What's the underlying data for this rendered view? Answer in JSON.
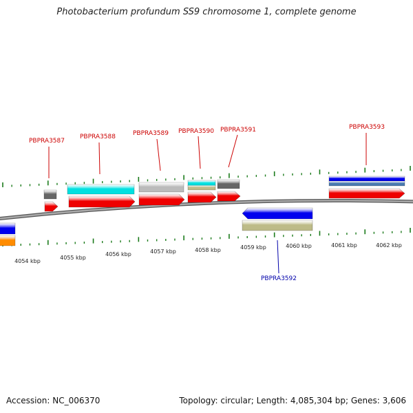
{
  "title": "Photobacterium profundum SS9 chromosome 1, complete genome",
  "footer": {
    "accession": "Accession: NC_006370",
    "summary": "Topology: circular; Length: 4,085,304 bp; Genes: 3,606"
  },
  "scale_labels": [
    "4054 kbp",
    "4055 kbp",
    "4056 kbp",
    "4057 kbp",
    "4058 kbp",
    "4059 kbp",
    "4060 kbp",
    "4061 kbp",
    "4062 kbp"
  ],
  "gene_labels": {
    "top": [
      "PBPRA3587",
      "PBPRA3588",
      "PBPRA3589",
      "PBPRA3590",
      "PBPRA3591",
      "PBPRA3593"
    ],
    "bottom": [
      "PBPRA3592"
    ]
  },
  "colors": {
    "label_top": "#cc0000",
    "label_bottom": "#0000aa",
    "tick": "#1a7a1a",
    "backbone": "#888888",
    "cds": "#ee0000",
    "cyan": "#00e0e0",
    "grey": "#bbbbbb",
    "dark": "#666666",
    "khaki": "#bdbb88",
    "blue": "#0000ee",
    "steel": "#4a7ab0",
    "orange": "#ff8c00"
  }
}
